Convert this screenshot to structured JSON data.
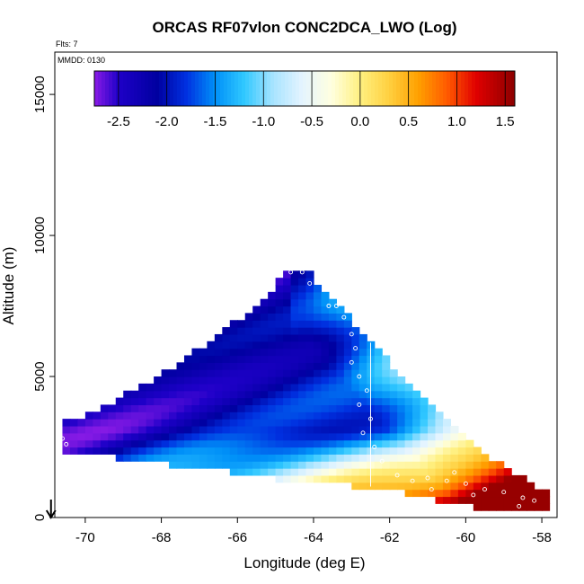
{
  "chart_data": {
    "type": "heatmap",
    "title": "ORCAS RF07vlon CONC2DCA_LWO (Log)",
    "flights_note": "Flts: 7",
    "date_note": "MMDD: 0130",
    "xlabel": "Longitude (deg E)",
    "ylabel": "Altitude (m)",
    "xlim": [
      -70.8,
      -57.6
    ],
    "ylim": [
      0,
      16500
    ],
    "x_ticks": [
      {
        "value": -70,
        "label": "-70"
      },
      {
        "value": -68,
        "label": "-68"
      },
      {
        "value": -66,
        "label": "-66"
      },
      {
        "value": -64,
        "label": "-64"
      },
      {
        "value": -62,
        "label": "-62"
      },
      {
        "value": -60,
        "label": "-60"
      },
      {
        "value": -58,
        "label": "-58"
      }
    ],
    "y_ticks": [
      {
        "value": 0,
        "label": "0"
      },
      {
        "value": 5000,
        "label": "5000"
      },
      {
        "value": 10000,
        "label": "10000"
      },
      {
        "value": 15000,
        "label": "15000"
      }
    ],
    "colorbar": {
      "range": [
        -2.75,
        1.6
      ],
      "ticks": [
        {
          "value": -2.5,
          "label": "-2.5"
        },
        {
          "value": -2.0,
          "label": "-2.0"
        },
        {
          "value": -1.5,
          "label": "-1.5"
        },
        {
          "value": -1.0,
          "label": "-1.0"
        },
        {
          "value": -0.5,
          "label": "-0.5"
        },
        {
          "value": 0.0,
          "label": "0.0"
        },
        {
          "value": 0.5,
          "label": "0.5"
        },
        {
          "value": 1.0,
          "label": "1.0"
        },
        {
          "value": 1.5,
          "label": "1.5"
        }
      ],
      "stops": [
        {
          "v": -2.75,
          "c": "#8A1BE6"
        },
        {
          "v": -2.5,
          "c": "#1E00C8"
        },
        {
          "v": -2.1,
          "c": "#0000A0"
        },
        {
          "v": -1.8,
          "c": "#0030E0"
        },
        {
          "v": -1.5,
          "c": "#0090F8"
        },
        {
          "v": -1.2,
          "c": "#30C8FF"
        },
        {
          "v": -0.9,
          "c": "#A8E4FF"
        },
        {
          "v": -0.6,
          "c": "#E4F4FF"
        },
        {
          "v": -0.3,
          "c": "#FFFFE0"
        },
        {
          "v": 0.0,
          "c": "#FFF080"
        },
        {
          "v": 0.3,
          "c": "#FFD040"
        },
        {
          "v": 0.6,
          "c": "#FFA000"
        },
        {
          "v": 0.9,
          "c": "#FF5A00"
        },
        {
          "v": 1.2,
          "c": "#E00000"
        },
        {
          "v": 1.6,
          "c": "#8C0000"
        }
      ]
    },
    "domain_profile": [
      {
        "lon": -70.5,
        "top": 3400,
        "bottom": 2250
      },
      {
        "lon": -69.7,
        "top": 3800,
        "bottom": 2250
      },
      {
        "lon": -69.0,
        "top": 4300,
        "bottom": 2100
      },
      {
        "lon": -68.0,
        "top": 5100,
        "bottom": 1900
      },
      {
        "lon": -67.0,
        "top": 6000,
        "bottom": 1750
      },
      {
        "lon": -66.0,
        "top": 7000,
        "bottom": 1600
      },
      {
        "lon": -65.0,
        "top": 8200,
        "bottom": 1400
      },
      {
        "lon": -64.7,
        "top": 8800,
        "bottom": 1250
      },
      {
        "lon": -64.2,
        "top": 8800,
        "bottom": 1250
      },
      {
        "lon": -63.5,
        "top": 7800,
        "bottom": 1200
      },
      {
        "lon": -62.5,
        "top": 6200,
        "bottom": 1050
      },
      {
        "lon": -61.5,
        "top": 4800,
        "bottom": 850
      },
      {
        "lon": -60.5,
        "top": 3400,
        "bottom": 500
      },
      {
        "lon": -59.5,
        "top": 2300,
        "bottom": 300
      },
      {
        "lon": -58.5,
        "top": 1400,
        "bottom": 250
      },
      {
        "lon": -58.0,
        "top": 1000,
        "bottom": 200
      }
    ],
    "flight_track_points": [
      {
        "lon": -64.6,
        "alt": 8700
      },
      {
        "lon": -64.3,
        "alt": 8700
      },
      {
        "lon": -64.1,
        "alt": 8300
      },
      {
        "lon": -63.6,
        "alt": 7500
      },
      {
        "lon": -63.4,
        "alt": 7500
      },
      {
        "lon": -63.2,
        "alt": 7100
      },
      {
        "lon": -63.0,
        "alt": 6500
      },
      {
        "lon": -62.9,
        "alt": 6000
      },
      {
        "lon": -63.0,
        "alt": 5500
      },
      {
        "lon": -62.8,
        "alt": 5000
      },
      {
        "lon": -62.6,
        "alt": 4500
      },
      {
        "lon": -62.8,
        "alt": 4000
      },
      {
        "lon": -62.5,
        "alt": 3500
      },
      {
        "lon": -62.7,
        "alt": 3000
      },
      {
        "lon": -62.4,
        "alt": 2500
      },
      {
        "lon": -62.2,
        "alt": 2000
      },
      {
        "lon": -61.8,
        "alt": 1500
      },
      {
        "lon": -61.4,
        "alt": 1300
      },
      {
        "lon": -61.0,
        "alt": 1400
      },
      {
        "lon": -60.5,
        "alt": 1300
      },
      {
        "lon": -60.0,
        "alt": 1200
      },
      {
        "lon": -59.5,
        "alt": 1000
      },
      {
        "lon": -59.0,
        "alt": 900
      },
      {
        "lon": -58.5,
        "alt": 700
      },
      {
        "lon": -58.2,
        "alt": 600
      },
      {
        "lon": -58.6,
        "alt": 400
      },
      {
        "lon": -59.8,
        "alt": 800
      },
      {
        "lon": -60.3,
        "alt": 1600
      },
      {
        "lon": -60.9,
        "alt": 1000
      },
      {
        "lon": -70.5,
        "alt": 2600
      },
      {
        "lon": -70.6,
        "alt": 2800
      }
    ],
    "marker": {
      "lon": -70.9,
      "description": "flight start arrow"
    }
  }
}
